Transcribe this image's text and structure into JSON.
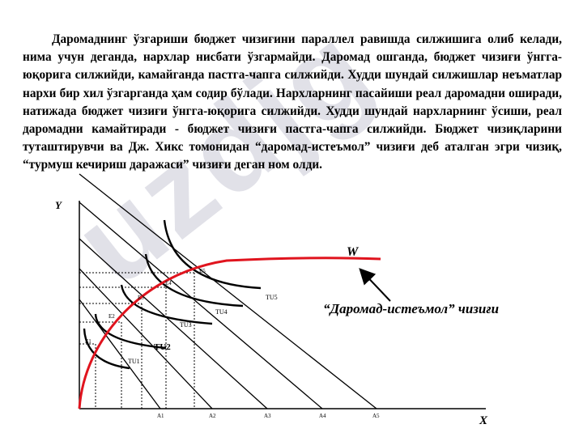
{
  "paragraph": "Даромаднинг ўзгариши бюджет чизиғини параллел равишда силжишига олиб келади, нима учун деганда, нархлар нисбати ўзгармайди. Даромад ошганда, бюджет чизиғи ўнгга-юқорига силжийди, камайганда пастга-чапга силжийди. Худди шундай силжишлар неъматлар нархи бир хил ўзгарганда ҳам  содир бўлади. Нархларнинг  пасайиши реал даромадни оширади, натижада бюджет чизиғи ўнгга-юқорига силжийди. Худди шундай нархларнинг ўсиши, реал даромадни камайтиради - бюджет чизиғи пастга-чапга силжийди. Бюджет чизиқларини туташтирувчи ва Дж. Хикс томонидан “даромад-истеъмол” чизиғи деб аталган эгри чизиқ, “турмуш кечириш даражаси” чизиғи деган ном олди.",
  "watermark": "uzdjg",
  "caption": "“Даромад-истеъмол” чизиғи",
  "diagram": {
    "y_axis_label": "Y",
    "x_axis_label": "X",
    "curve_label": "W",
    "x_points": [
      "A1",
      "A2",
      "A3",
      "A4",
      "A5"
    ],
    "equilibria": [
      "E1",
      "E2",
      "E3",
      "E4",
      "E5"
    ],
    "indifference_curves": [
      "TU1",
      "TU2",
      "TU3",
      "TU4",
      "TU5"
    ],
    "colors": {
      "income_consumption_curve": "#e0141e",
      "lines": "#000000"
    }
  }
}
